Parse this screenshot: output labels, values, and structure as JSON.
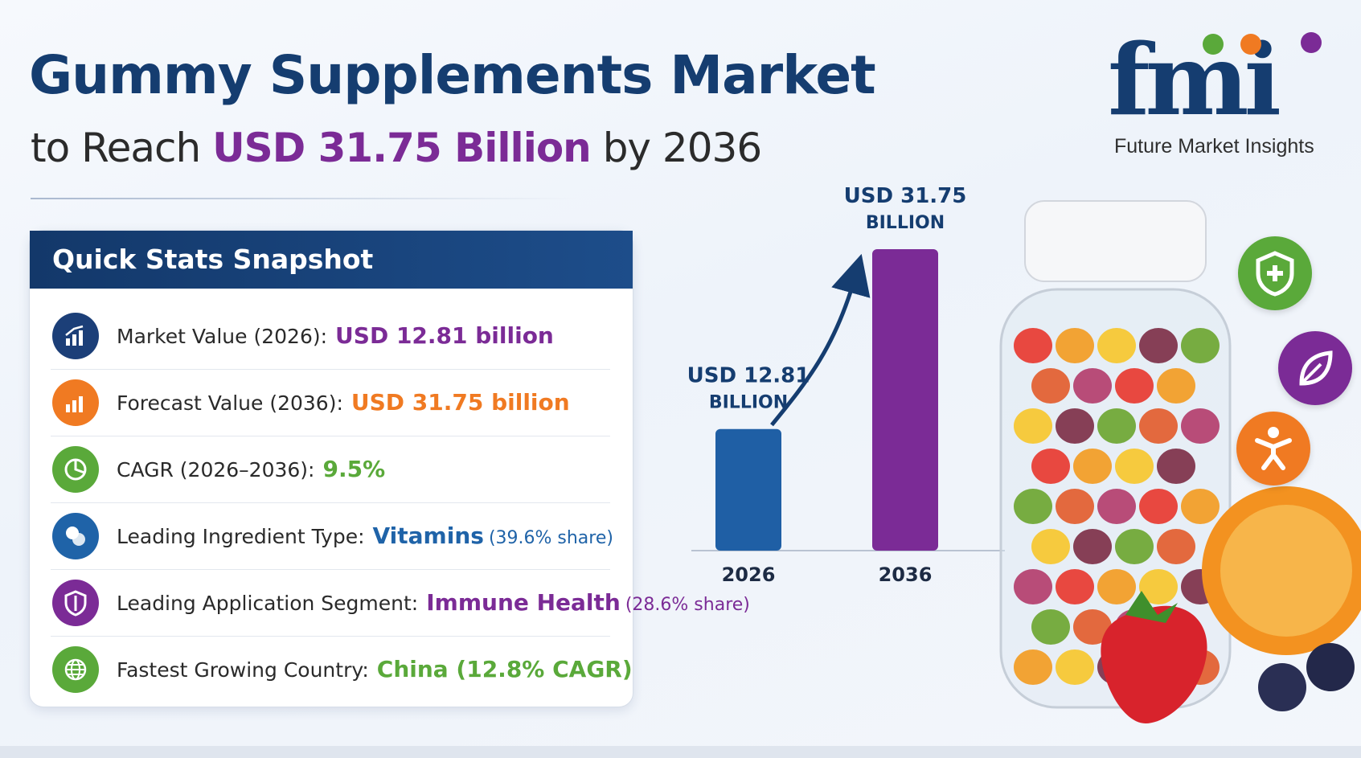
{
  "header": {
    "title": "Gummy Supplements Market",
    "subtitle_prefix": "to Reach",
    "subtitle_highlight": "USD 31.75 Billion",
    "subtitle_suffix": "by 2036"
  },
  "logo": {
    "wordmark": "fmi",
    "caption": "Future Market Insights",
    "dot_colors": [
      "#5aa93a",
      "#f07a22",
      "#7b2b96"
    ]
  },
  "stats": {
    "title": "Quick Stats Snapshot",
    "items": [
      {
        "label": "Market Value (2026):",
        "value": "USD 12.81 billion",
        "share": "",
        "color": "#7b2b96",
        "icon": "chart-up-icon",
        "icon_bg": "#1c3f78"
      },
      {
        "label": "Forecast Value (2036):",
        "value": "USD 31.75 billion",
        "share": "",
        "color": "#f07a22",
        "icon": "forecast-chart-icon",
        "icon_bg": "#f07a22"
      },
      {
        "label": "CAGR (2026–2036):",
        "value": "9.5%",
        "share": "",
        "color": "#5aa93a",
        "icon": "pie-chart-icon",
        "icon_bg": "#5aa93a"
      },
      {
        "label": "Leading Ingredient Type:",
        "value": "Vitamins",
        "share": "(39.6% share)",
        "color": "#1f63a8",
        "icon": "pill-icon",
        "icon_bg": "#1f63a8"
      },
      {
        "label": "Leading Application Segment:",
        "value": "Immune Health",
        "share": "(28.6% share)",
        "color": "#7b2b96",
        "icon": "shield-icon",
        "icon_bg": "#7b2b96"
      },
      {
        "label": "Fastest Growing Country:",
        "value": "China (12.8% CAGR)",
        "share": "",
        "color": "#5aa93a",
        "icon": "globe-icon",
        "icon_bg": "#5aa93a"
      }
    ]
  },
  "chart_data": {
    "type": "bar",
    "categories": [
      "2026",
      "2036"
    ],
    "values": [
      12.81,
      31.75
    ],
    "data_labels": [
      [
        "USD 12.81",
        "BILLION"
      ],
      [
        "USD 31.75",
        "BILLION"
      ]
    ],
    "colors": [
      "#1f5fa5",
      "#7b2b96"
    ],
    "ylim": [
      0,
      31.75
    ],
    "grid": false,
    "title": "",
    "xlabel": "",
    "ylabel": ""
  },
  "side_icons": [
    {
      "name": "shield-plus-icon",
      "color": "#5aa93a"
    },
    {
      "name": "leaf-icon",
      "color": "#7b2b96"
    },
    {
      "name": "person-icon",
      "color": "#f07a22"
    }
  ]
}
